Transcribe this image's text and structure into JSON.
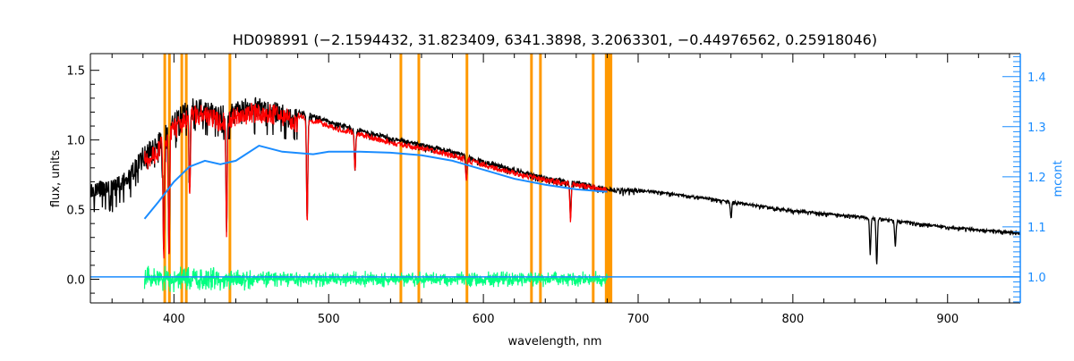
{
  "chart_data": {
    "type": "line",
    "title": "HD098991    (−2.1594432, 31.823409, 6341.3898, 3.2063301, −0.44976562, 0.25918046)",
    "xlabel": "wavelength, nm",
    "ylabel": "flux, units",
    "y2label": "mcont",
    "xlim": [
      346,
      947
    ],
    "ylim": [
      -0.17,
      1.62
    ],
    "y2lim": [
      0.948,
      1.446
    ],
    "xticks": [
      400,
      500,
      600,
      700,
      800,
      900
    ],
    "yticks": [
      0.0,
      0.5,
      1.0,
      1.5
    ],
    "yticklabels": [
      "0.0",
      "0.5",
      "1.0",
      "1.5"
    ],
    "y2ticks": [
      1.0,
      1.1,
      1.2,
      1.3,
      1.4
    ],
    "y2ticklabels": [
      "1.0",
      "1.1",
      "1.2",
      "1.3",
      "1.4"
    ],
    "grid": false,
    "colors": {
      "observed": "#000000",
      "model": "#ff0000",
      "continuum": "#1a8cff",
      "residual": "#00ff80",
      "mask": "#ff9900",
      "axis2": "#1a8cff"
    },
    "masked_regions_nm": [
      [
        393.2,
        393.9
      ],
      [
        396.2,
        396.9
      ],
      [
        404.2,
        405.0
      ],
      [
        407.1,
        407.9
      ],
      [
        435.3,
        436.3
      ],
      [
        545.8,
        546.6
      ],
      [
        557.4,
        558.2
      ],
      [
        588.5,
        589.8
      ],
      [
        630.2,
        631.0
      ],
      [
        636.0,
        636.8
      ],
      [
        670.1,
        670.9
      ],
      [
        678.5,
        683.3
      ]
    ],
    "series": [
      {
        "name": "observed flux",
        "axis": "left",
        "x": [
          346,
          360,
          370,
          380,
          390,
          400,
          410,
          420,
          430,
          440,
          450,
          460,
          480,
          500,
          520,
          540,
          560,
          580,
          600,
          620,
          640,
          660,
          680,
          700,
          750,
          800,
          850,
          900,
          947
        ],
        "y": [
          0.7,
          0.72,
          0.78,
          0.95,
          1.05,
          1.2,
          1.3,
          1.3,
          1.25,
          1.28,
          1.31,
          1.3,
          1.22,
          1.15,
          1.08,
          1.03,
          0.98,
          0.93,
          0.86,
          0.8,
          0.74,
          0.71,
          0.66,
          0.65,
          0.58,
          0.5,
          0.45,
          0.38,
          0.34
        ],
        "absorption_lines": [
          [
            393.4,
            0.23
          ],
          [
            396.8,
            0.23
          ],
          [
            410.2,
            0.7
          ],
          [
            434.0,
            0.45
          ],
          [
            486.1,
            0.43
          ],
          [
            517.0,
            0.8
          ],
          [
            589.0,
            0.75
          ],
          [
            656.3,
            0.45
          ],
          [
            760.0,
            0.45
          ],
          [
            850.0,
            0.2
          ],
          [
            854.2,
            0.11
          ],
          [
            866.2,
            0.25
          ]
        ]
      },
      {
        "name": "model flux",
        "axis": "left",
        "x": [
          381,
          390,
          400,
          410,
          420,
          430,
          440,
          450,
          460,
          480,
          500,
          520,
          540,
          560,
          580,
          600,
          620,
          640,
          660,
          680
        ],
        "y": [
          0.92,
          1.0,
          1.15,
          1.25,
          1.26,
          1.2,
          1.24,
          1.27,
          1.27,
          1.2,
          1.12,
          1.06,
          1.0,
          0.96,
          0.91,
          0.84,
          0.78,
          0.73,
          0.7,
          0.66
        ]
      },
      {
        "name": "mcont",
        "axis": "right",
        "x": [
          381,
          390,
          400,
          410,
          420,
          430,
          440,
          455,
          470,
          490,
          500,
          520,
          540,
          560,
          580,
          600,
          620,
          640,
          660,
          680
        ],
        "y": [
          1.116,
          1.15,
          1.19,
          1.22,
          1.232,
          1.225,
          1.232,
          1.262,
          1.25,
          1.245,
          1.25,
          1.25,
          1.248,
          1.243,
          1.232,
          1.214,
          1.196,
          1.184,
          1.175,
          1.17
        ]
      },
      {
        "name": "mcont baseline",
        "axis": "right",
        "x": [
          346,
          381,
          680,
          947
        ],
        "y": [
          1.0,
          1.0,
          1.0,
          1.0
        ]
      },
      {
        "name": "residual",
        "axis": "left",
        "x": [
          381,
          680
        ],
        "y": [
          0.0,
          0.0
        ],
        "scatter_amplitude": 0.08
      }
    ]
  }
}
